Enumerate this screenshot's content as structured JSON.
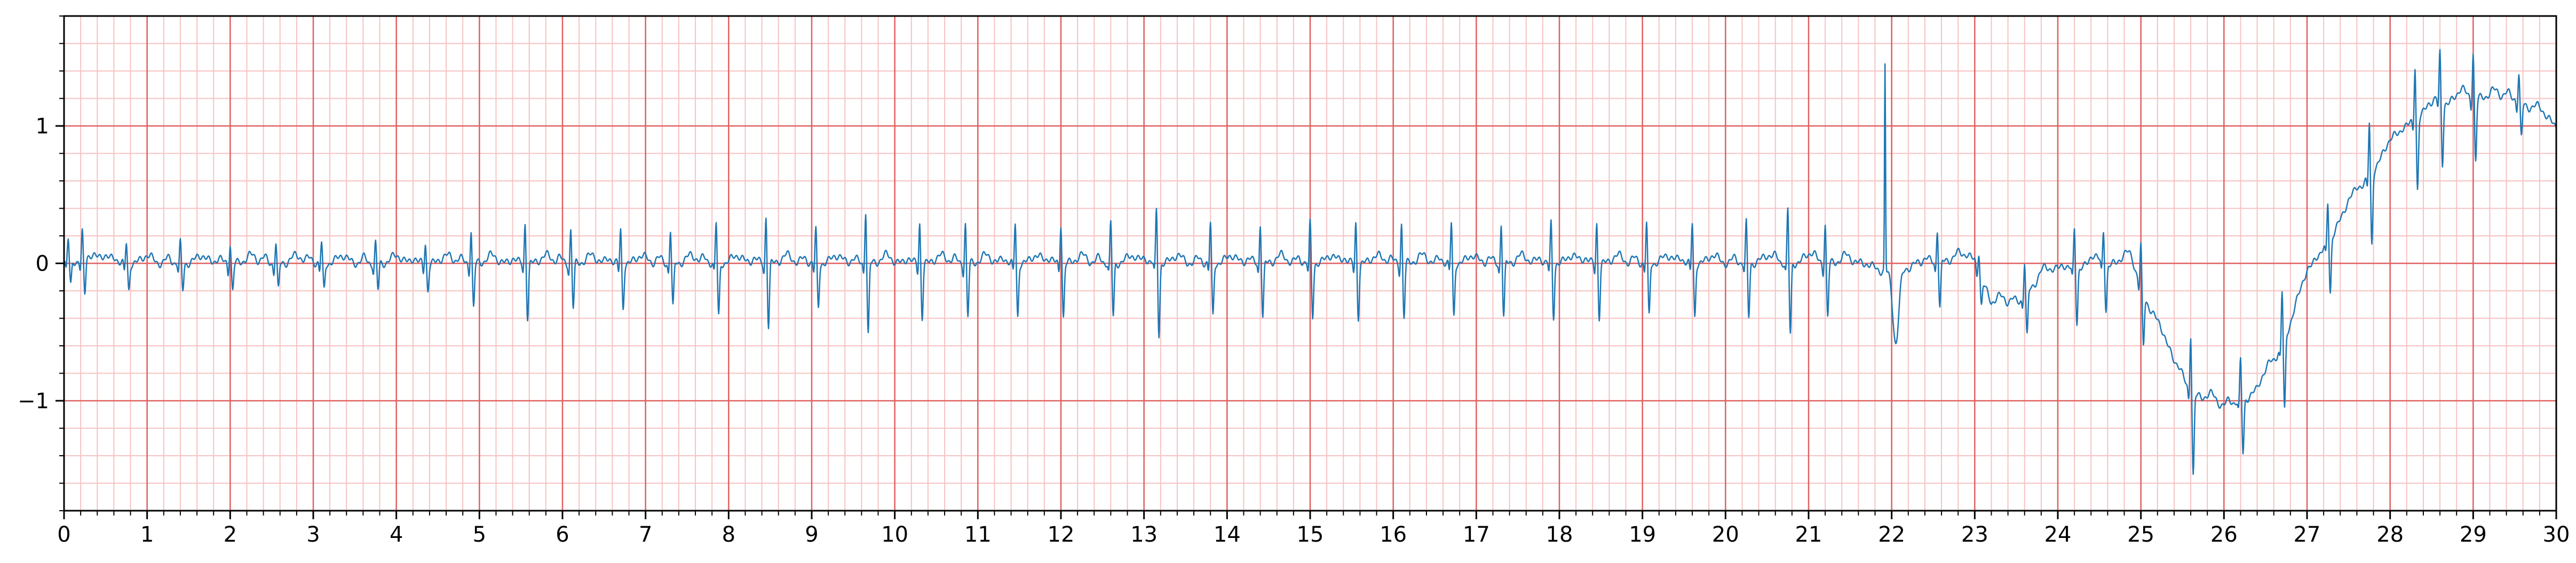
{
  "chart_data": {
    "type": "line",
    "title": "",
    "xlabel": "",
    "ylabel": "",
    "xlim": [
      0,
      30
    ],
    "ylim": [
      -1.8,
      1.8
    ],
    "x_ticks": [
      0,
      1,
      2,
      3,
      4,
      5,
      6,
      7,
      8,
      9,
      10,
      11,
      12,
      13,
      14,
      15,
      16,
      17,
      18,
      19,
      20,
      21,
      22,
      23,
      24,
      25,
      26,
      27,
      28,
      29,
      30
    ],
    "x_tick_labels": [
      "0",
      "1",
      "2",
      "3",
      "4",
      "5",
      "6",
      "7",
      "8",
      "9",
      "10",
      "11",
      "12",
      "13",
      "14",
      "15",
      "16",
      "17",
      "18",
      "19",
      "20",
      "21",
      "22",
      "23",
      "24",
      "25",
      "26",
      "27",
      "28",
      "29",
      "30"
    ],
    "y_ticks": [
      -1,
      0,
      1
    ],
    "y_tick_labels": [
      "−1",
      "0",
      "1"
    ],
    "grid": true,
    "grid_major_color": "#e06060",
    "grid_minor_color": "#f7c2c2",
    "line_color": "#1f77b4",
    "series": [
      {
        "baseline": [
          [
            0,
            0.0
          ],
          [
            21.7,
            0.0
          ],
          [
            21.85,
            -0.05
          ],
          [
            22.05,
            -0.08
          ],
          [
            22.3,
            0.0
          ],
          [
            23.0,
            0.02
          ],
          [
            23.2,
            -0.3
          ],
          [
            23.5,
            -0.3
          ],
          [
            23.8,
            -0.1
          ],
          [
            24.0,
            -0.05
          ],
          [
            24.9,
            0.0
          ],
          [
            25.05,
            -0.25
          ],
          [
            25.3,
            -0.6
          ],
          [
            25.6,
            -0.95
          ],
          [
            26.0,
            -1.05
          ],
          [
            26.4,
            -0.95
          ],
          [
            26.7,
            -0.6
          ],
          [
            27.0,
            -0.1
          ],
          [
            27.3,
            0.2
          ],
          [
            27.6,
            0.5
          ],
          [
            28.0,
            0.85
          ],
          [
            28.3,
            1.05
          ],
          [
            28.6,
            1.15
          ],
          [
            29.0,
            1.2
          ],
          [
            29.5,
            1.2
          ],
          [
            30.0,
            1.0
          ]
        ],
        "beat_times": [
          0.05,
          0.22,
          0.75,
          1.4,
          2.0,
          2.55,
          3.1,
          3.75,
          4.35,
          4.9,
          5.55,
          6.1,
          6.7,
          7.3,
          7.85,
          8.45,
          9.05,
          9.65,
          10.3,
          10.85,
          11.45,
          12.0,
          12.6,
          13.15,
          13.8,
          14.4,
          15.0,
          15.55,
          16.1,
          16.7,
          17.3,
          17.9,
          18.45,
          19.05,
          19.6,
          20.25,
          20.75,
          21.2,
          22.55,
          23.05,
          23.6,
          24.2,
          24.55,
          25.0,
          25.6,
          26.2,
          26.7,
          27.25,
          27.75,
          28.3,
          28.6,
          29.0,
          29.55
        ],
        "beat_peaks": [
          0.15,
          0.2,
          0.15,
          0.15,
          0.15,
          0.15,
          0.15,
          0.15,
          0.15,
          0.25,
          0.3,
          0.25,
          0.25,
          0.25,
          0.3,
          0.35,
          0.25,
          0.4,
          0.3,
          0.3,
          0.3,
          0.3,
          0.3,
          0.4,
          0.3,
          0.3,
          0.3,
          0.3,
          0.3,
          0.3,
          0.3,
          0.3,
          0.3,
          0.3,
          0.3,
          0.3,
          0.4,
          0.3,
          0.25,
          0.15,
          0.25,
          0.3,
          0.25,
          0.3,
          0.45,
          0.3,
          0.4,
          0.3,
          0.4,
          0.4,
          0.35,
          0.35,
          0.2
        ],
        "artifact": {
          "x": 21.92,
          "peak": 1.5,
          "trough": -0.5
        }
      }
    ]
  }
}
